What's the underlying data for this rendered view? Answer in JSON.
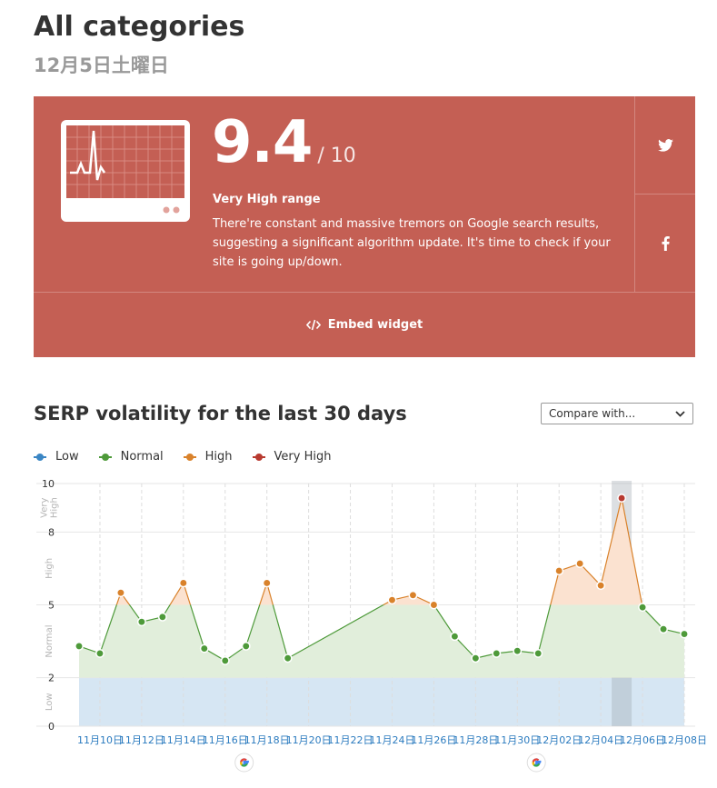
{
  "header": {
    "title": "All categories",
    "date": "12月5日土曜日"
  },
  "score_card": {
    "score": "9.4",
    "score_max": "/ 10",
    "range_label": "Very High range",
    "description": "There're constant and massive tremors on Google search results, suggesting a significant algorithm update. It's time to check if your site is going up/down.",
    "embed_label": "Embed widget",
    "social": [
      "twitter-icon",
      "facebook-icon"
    ],
    "bg_color": "#c45f54"
  },
  "volatility": {
    "title": "SERP volatility for the last 30 days",
    "compare_placeholder": "Compare with..."
  },
  "legend": [
    {
      "label": "Low",
      "color": "#3b86c4"
    },
    {
      "label": "Normal",
      "color": "#4e9a3a"
    },
    {
      "label": "High",
      "color": "#d9822b"
    },
    {
      "label": "Very High",
      "color": "#b83a30"
    }
  ],
  "chart_data": {
    "type": "area",
    "ylim": [
      0,
      10
    ],
    "y_ticks": [
      "0",
      "2",
      "5",
      "8",
      "10"
    ],
    "bands": [
      {
        "label": "Low",
        "from": 0,
        "to": 2,
        "color": "#d6e6f3"
      },
      {
        "label": "Normal",
        "from": 2,
        "to": 5,
        "color": "#e1eedb"
      },
      {
        "label": "High",
        "from": 5,
        "to": 8,
        "color": "#fbe2d0"
      },
      {
        "label": "Very High",
        "from": 8,
        "to": 10,
        "color": "#f6d5d2"
      }
    ],
    "band_labels": [
      "Low",
      "Normal",
      "High",
      "Very High"
    ],
    "x_tick_labels": [
      "11月10日",
      "11月12日",
      "11月14日",
      "11月16日",
      "11月18日",
      "11月20日",
      "11月22日",
      "11月24日",
      "11月26日",
      "11月28日",
      "11月30日",
      "12月02日",
      "12月04日",
      "12月06日",
      "12月08日"
    ],
    "google_update_ticks": [
      "11月18日",
      "12月02日"
    ],
    "highlight": "12月05日",
    "points": [
      {
        "x": "11月09日",
        "y": 3.3
      },
      {
        "x": "11月10日",
        "y": 3.0
      },
      {
        "x": "11月11日",
        "y": 5.5
      },
      {
        "x": "11月12日",
        "y": 4.3
      },
      {
        "x": "11月13日",
        "y": 4.5
      },
      {
        "x": "11月14日",
        "y": 5.9
      },
      {
        "x": "11月15日",
        "y": 3.2
      },
      {
        "x": "11月16日",
        "y": 2.7
      },
      {
        "x": "11月17日",
        "y": 3.3
      },
      {
        "x": "11月18日",
        "y": 5.9
      },
      {
        "x": "11月19日",
        "y": 2.8
      },
      {
        "x": "11月24日",
        "y": 5.2
      },
      {
        "x": "11月25日",
        "y": 5.4
      },
      {
        "x": "11月26日",
        "y": 5.0
      },
      {
        "x": "11月27日",
        "y": 3.7
      },
      {
        "x": "11月28日",
        "y": 2.8
      },
      {
        "x": "11月29日",
        "y": 3.0
      },
      {
        "x": "11月30日",
        "y": 3.1
      },
      {
        "x": "12月01日",
        "y": 3.0
      },
      {
        "x": "12月02日",
        "y": 6.4
      },
      {
        "x": "12月03日",
        "y": 6.7
      },
      {
        "x": "12月04日",
        "y": 5.8
      },
      {
        "x": "12月05日",
        "y": 9.4
      },
      {
        "x": "12月06日",
        "y": 4.9
      },
      {
        "x": "12月07日",
        "y": 4.0
      },
      {
        "x": "12月08日",
        "y": 3.8
      }
    ]
  }
}
